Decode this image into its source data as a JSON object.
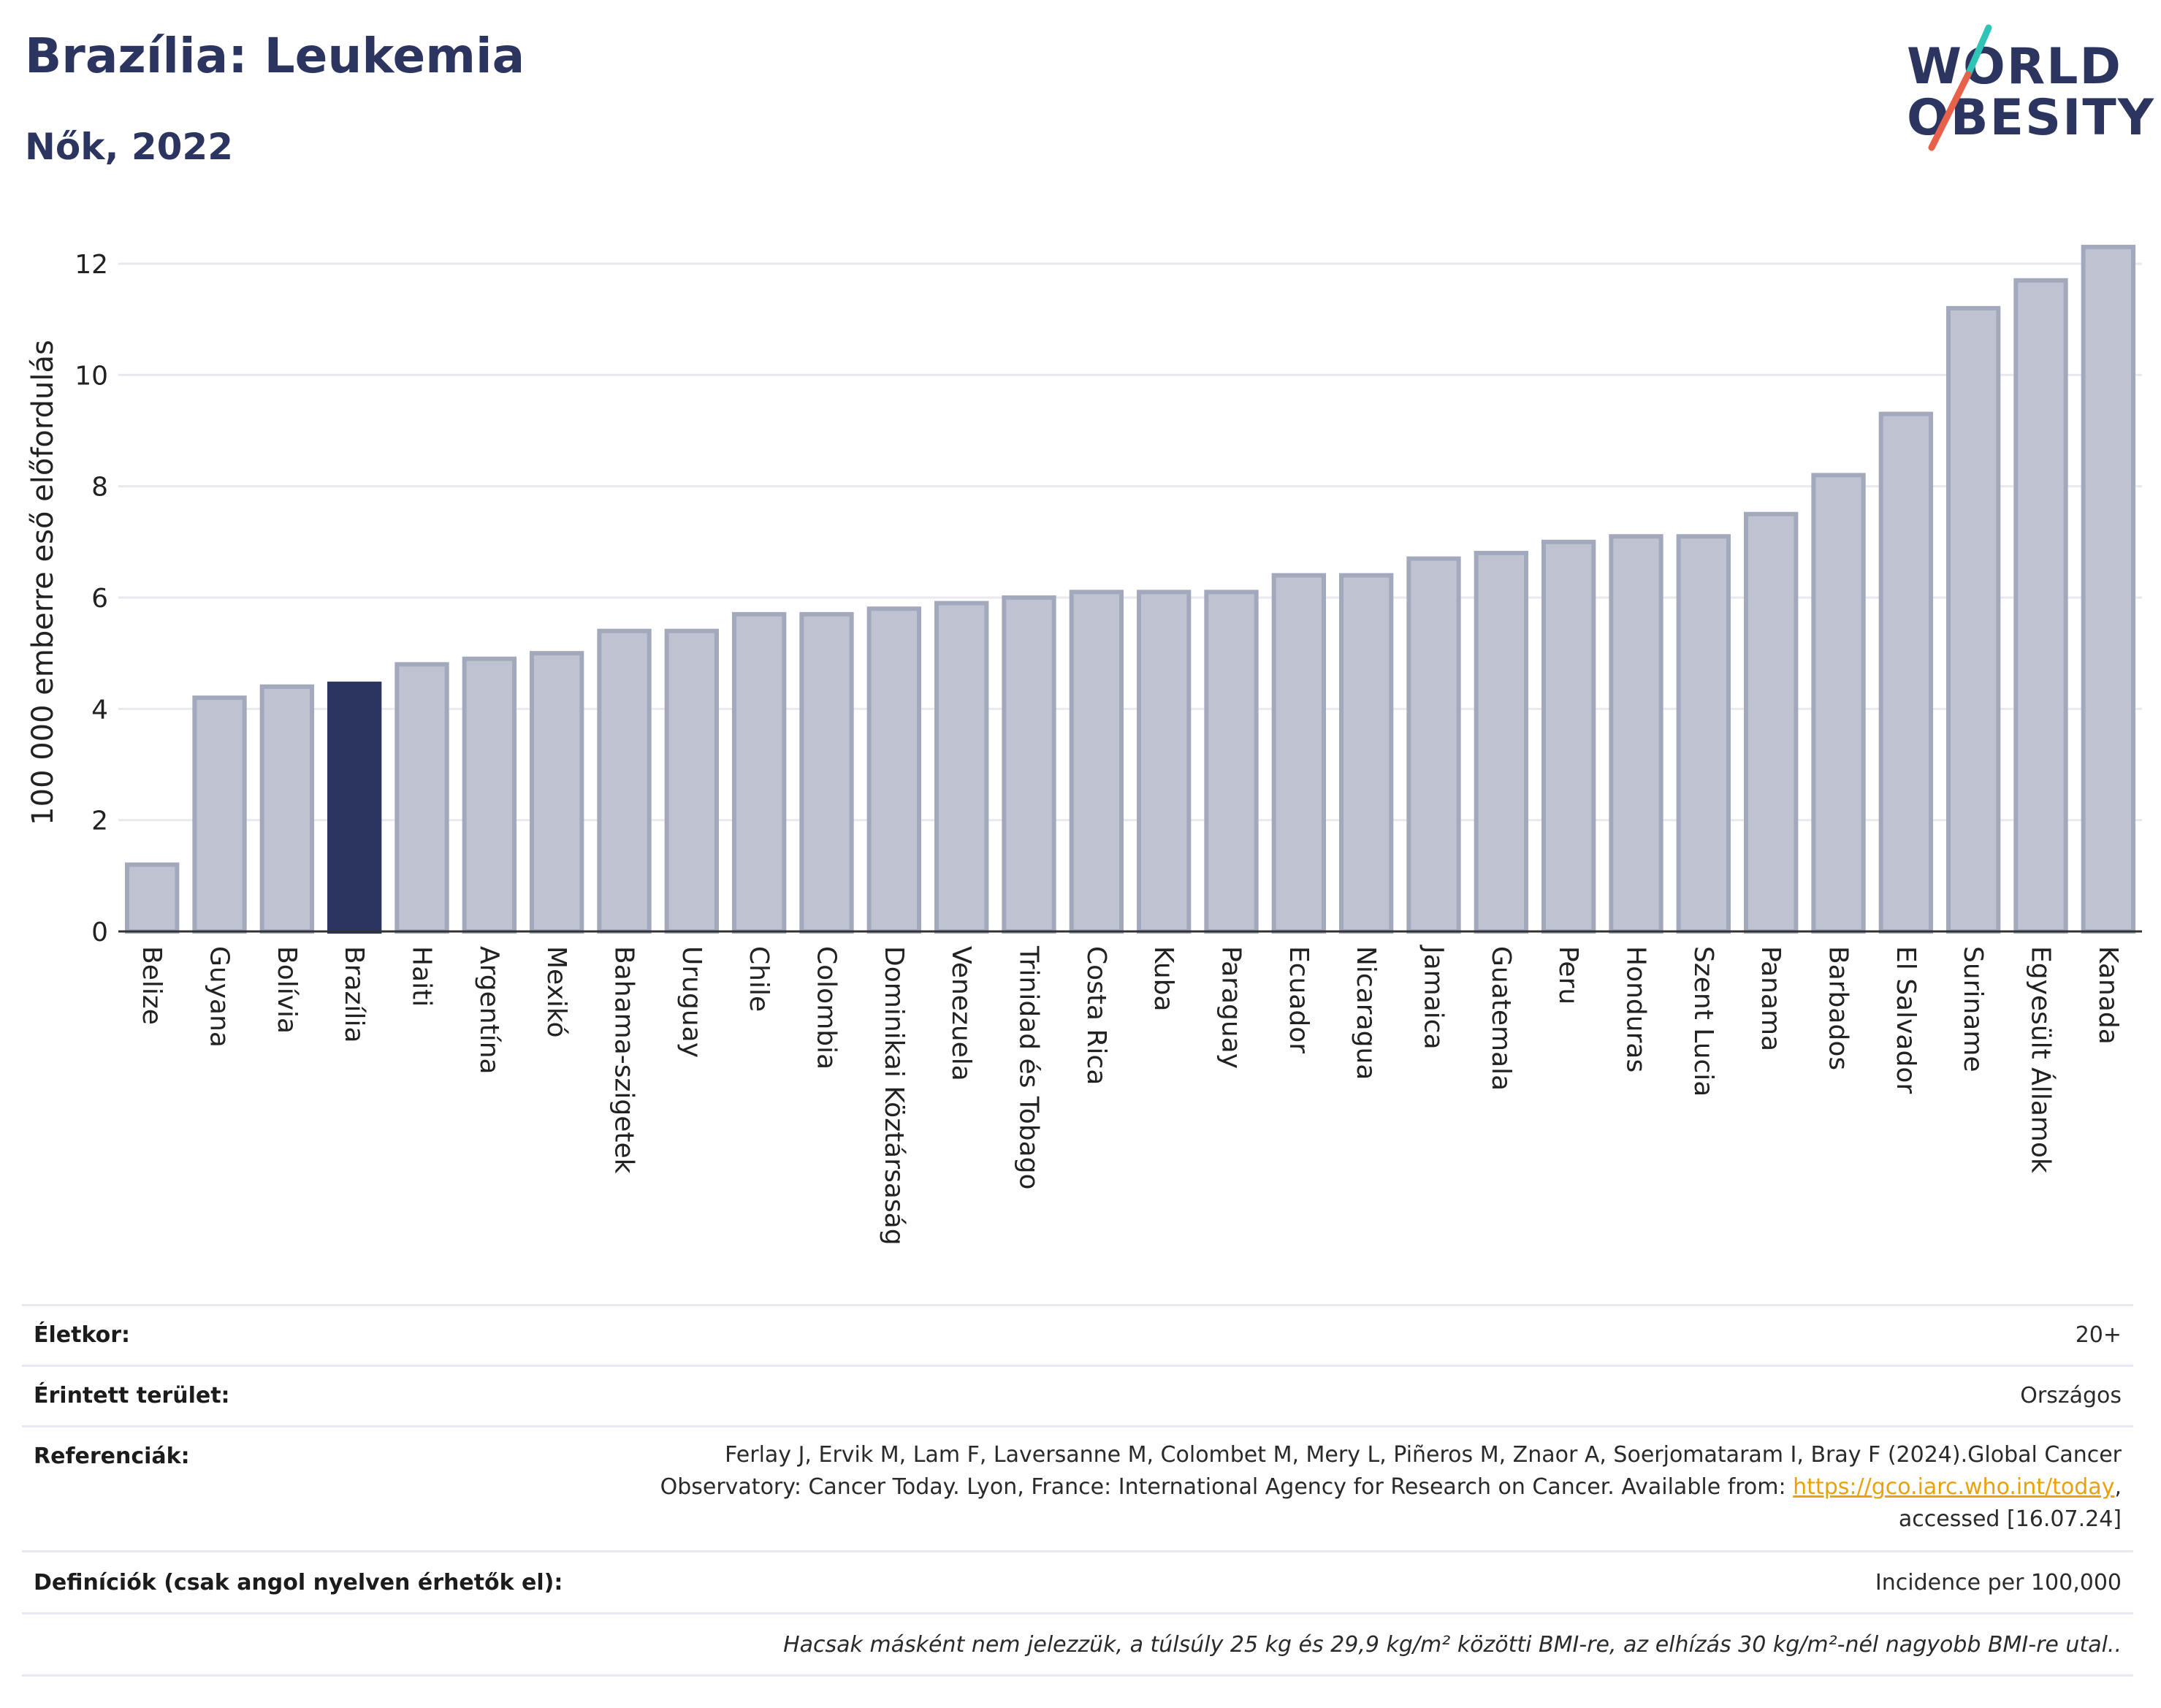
{
  "header": {
    "title": "Brazília: Leukemia",
    "subtitle": "Nők, 2022"
  },
  "logo": {
    "line1": "WORLD",
    "line2": "OBESITY",
    "accent_colors": [
      "#2ec4b6",
      "#e8614a"
    ]
  },
  "colors": {
    "highlight_bar": "#2b3560",
    "default_bar_fill": "#bfc3d1",
    "default_bar_stroke": "#a3a9bd",
    "grid": "#e8e8ef"
  },
  "chart_data": {
    "type": "bar",
    "title": "",
    "xlabel": "",
    "ylabel": "100 000 emberre eső előfordulás",
    "ylim": [
      0,
      12.8
    ],
    "yticks": [
      0,
      2,
      4,
      6,
      8,
      10,
      12
    ],
    "grid": true,
    "highlight": "Brazília",
    "categories": [
      "Belize",
      "Guyana",
      "Bolívia",
      "Brazília",
      "Haiti",
      "Argentína",
      "Mexikó",
      "Bahama-szigetek",
      "Uruguay",
      "Chile",
      "Colombia",
      "Dominikai Köztársaság",
      "Venezuela",
      "Trinidad és Tobago",
      "Costa Rica",
      "Kuba",
      "Paraguay",
      "Ecuador",
      "Nicaragua",
      "Jamaica",
      "Guatemala",
      "Peru",
      "Honduras",
      "Szent Lucia",
      "Panama",
      "Barbados",
      "El Salvador",
      "Suriname",
      "Egyesült Államok",
      "Kanada"
    ],
    "values": [
      1.2,
      4.2,
      4.4,
      4.45,
      4.8,
      4.9,
      5.0,
      5.4,
      5.4,
      5.7,
      5.7,
      5.8,
      5.9,
      6.0,
      6.1,
      6.1,
      6.1,
      6.4,
      6.4,
      6.7,
      6.8,
      7.0,
      7.1,
      7.1,
      7.5,
      8.2,
      9.3,
      11.2,
      11.7,
      12.3
    ]
  },
  "meta": {
    "age_label": "Életkor:",
    "age_value": "20+",
    "area_label": "Érintett terület:",
    "area_value": "Országos",
    "ref_label": "Referenciák:",
    "ref_line1": "Ferlay J, Ervik M, Lam F, Laversanne M, Colombet M, Mery L, Piñeros M, Znaor A, Soerjomataram I, Bray F (2024).Global Cancer",
    "ref_line2_pre": "Observatory: Cancer Today. Lyon, France: International Agency for Research on Cancer. Available from: ",
    "ref_link": "https://gco.iarc.who.int/today",
    "ref_line2_post": ",",
    "ref_line3": "accessed [16.07.24]",
    "def_label": "Definíciók (csak angol nyelven érhetők el):",
    "def_value": "Incidence per 100,000",
    "note": "Hacsak másként nem jelezzük, a túlsúly 25 kg és 29,9 kg/m² közötti BMI-re, az elhízás 30 kg/m²-nél nagyobb BMI-re utal.."
  }
}
